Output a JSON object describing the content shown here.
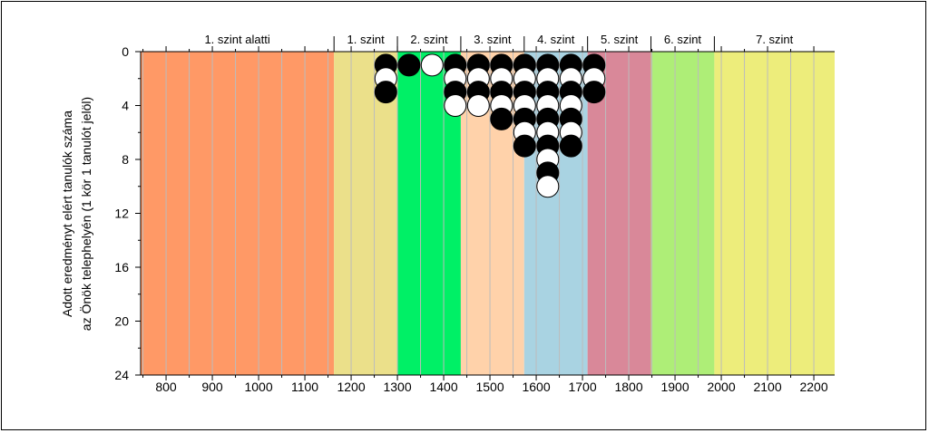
{
  "chart_data": {
    "type": "scatter",
    "ylabel_line1": "Adott eredményt elért tanulók száma",
    "ylabel_line2": "az Önök telephelyén (1 kör 1 tanulót jelöl)",
    "xlim": [
      745,
      2245
    ],
    "ylim": [
      0,
      24
    ],
    "y_inverted": true,
    "x_ticks": [
      800,
      900,
      1000,
      1100,
      1200,
      1300,
      1400,
      1500,
      1600,
      1700,
      1800,
      1900,
      2000,
      2100,
      2200
    ],
    "y_ticks": [
      0,
      4,
      8,
      12,
      16,
      20,
      24
    ],
    "bands": [
      {
        "label": "1. szint alatti",
        "from": 745,
        "to": 1163,
        "color": "#FF9966"
      },
      {
        "label": "1. szint",
        "from": 1163,
        "to": 1300,
        "color": "#EBE08A"
      },
      {
        "label": "2. szint",
        "from": 1300,
        "to": 1437,
        "color": "#00F066"
      },
      {
        "label": "3. szint",
        "from": 1437,
        "to": 1574,
        "color": "#FFD2AA"
      },
      {
        "label": "4. szint",
        "from": 1574,
        "to": 1711,
        "color": "#A9D3E2"
      },
      {
        "label": "5. szint",
        "from": 1711,
        "to": 1848,
        "color": "#D98899"
      },
      {
        "label": "6. szint",
        "from": 1848,
        "to": 1985,
        "color": "#AEEE77"
      },
      {
        "label": "7. szint",
        "from": 1985,
        "to": 2245,
        "color": "#EDED7B"
      }
    ],
    "columns": [
      {
        "x": 1275,
        "colors": [
          "black",
          "white",
          "black"
        ]
      },
      {
        "x": 1325,
        "colors": [
          "black"
        ]
      },
      {
        "x": 1375,
        "colors": [
          "white"
        ]
      },
      {
        "x": 1425,
        "colors": [
          "black",
          "white",
          "black",
          "white"
        ]
      },
      {
        "x": 1475,
        "colors": [
          "black",
          "white",
          "black",
          "white"
        ]
      },
      {
        "x": 1525,
        "colors": [
          "black",
          "white",
          "black",
          "white",
          "black"
        ]
      },
      {
        "x": 1575,
        "colors": [
          "black",
          "white",
          "black",
          "white",
          "black",
          "white",
          "black"
        ]
      },
      {
        "x": 1625,
        "colors": [
          "black",
          "white",
          "black",
          "white",
          "black",
          "white",
          "black",
          "white",
          "black",
          "white"
        ]
      },
      {
        "x": 1675,
        "colors": [
          "black",
          "white",
          "black",
          "white",
          "black",
          "white",
          "black"
        ]
      },
      {
        "x": 1725,
        "colors": [
          "black",
          "white",
          "black"
        ]
      }
    ]
  }
}
